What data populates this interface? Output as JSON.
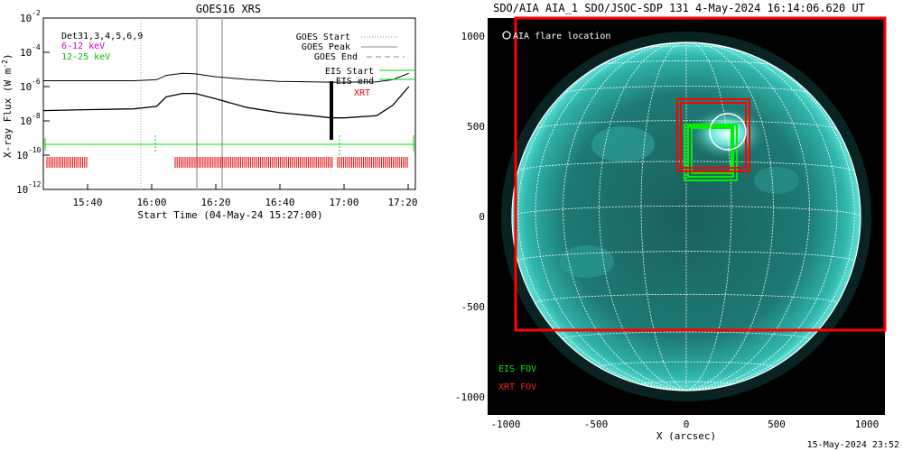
{
  "left": {
    "title": "GOES16 XRS",
    "ylabel": "X-ray Flux (W m",
    "ylabel_sup": "-2",
    "ylabel_end": ")",
    "xlabel": "Start Time (04-May-24 15:27:00)",
    "det_label": "Det31,3,4,5,6,9",
    "band_low": "6-12 keV",
    "band_high": "12-25 keV",
    "y_ticks": [
      {
        "exp": "-2",
        "label": "10"
      },
      {
        "exp": "-4",
        "label": "10"
      },
      {
        "exp": "-6",
        "label": "10"
      },
      {
        "exp": "-8",
        "label": "10"
      },
      {
        "exp": "-10",
        "label": "10"
      },
      {
        "exp": "-12",
        "label": "10"
      }
    ],
    "x_ticks": [
      "15:40",
      "16:00",
      "16:20",
      "16:40",
      "17:00",
      "17:20"
    ],
    "legend": {
      "goes_start": "GOES Start",
      "goes_peak": "GOES Peak",
      "goes_end": "GOES End",
      "eis_start": "EIS Start",
      "eis_end": "EIS end",
      "xrt": "XRT"
    },
    "colors": {
      "eis": "#00dd00",
      "xrt": "#e00000",
      "low": "#cc00cc",
      "high": "#00cc00"
    }
  },
  "right": {
    "title": "SDO/AIA AIA_1 SDO/JSOC-SDP 131  4-May-2024 16:14:06.620 UT",
    "flare_label": "AIA flare location",
    "eis_fov": "EIS FOV",
    "xrt_fov": "XRT FOV",
    "xlabel": "X (arcsec)",
    "x_ticks": [
      "-1000",
      "-500",
      "0",
      "500",
      "1000"
    ],
    "y_ticks": [
      "1000",
      "500",
      "0",
      "-500",
      "-1000"
    ],
    "colors": {
      "disk": "#22a8a0",
      "eis": "#00ee00",
      "xrt": "#ff0000"
    }
  },
  "footer": "15-May-2024 23:52",
  "chart_data": [
    {
      "type": "line",
      "title": "GOES16 XRS",
      "xlabel": "Start Time (04-May-24 15:27:00)",
      "ylabel": "X-ray Flux (W m-2)",
      "y_scale": "log",
      "ylim": [
        1e-12,
        0.01
      ],
      "x_range": [
        "15:27",
        "17:22"
      ],
      "series": [
        {
          "name": "6-12 keV",
          "x": [
            "15:27",
            "15:40",
            "15:55",
            "16:02",
            "16:05",
            "16:10",
            "16:14",
            "16:20",
            "16:30",
            "16:40",
            "16:50",
            "16:56",
            "17:00",
            "17:10",
            "17:15",
            "17:20"
          ],
          "values": [
            2.2e-06,
            2.2e-06,
            2.2e-06,
            2.5e-06,
            4.5e-06,
            6e-06,
            5.5e-06,
            3.8e-06,
            2.6e-06,
            2e-06,
            1.9e-06,
            1.8e-06,
            1.8e-06,
            1.9e-06,
            2.5e-06,
            6e-06
          ]
        },
        {
          "name": "12-25 keV",
          "x": [
            "15:27",
            "15:40",
            "15:55",
            "16:02",
            "16:05",
            "16:10",
            "16:14",
            "16:20",
            "16:30",
            "16:40",
            "16:50",
            "16:56",
            "17:00",
            "17:10",
            "17:15",
            "17:20"
          ],
          "values": [
            4e-08,
            4.5e-08,
            5e-08,
            7e-08,
            2.5e-07,
            4e-07,
            4e-07,
            2e-07,
            6e-08,
            3e-08,
            2e-08,
            1.5e-08,
            1.5e-08,
            2e-08,
            8e-08,
            1e-06
          ]
        }
      ]
    },
    {
      "type": "scatter",
      "title": "SDO/AIA AIA_1 SDO/JSOC-SDP 131  4-May-2024 16:14:06.620 UT",
      "xlabel": "X (arcsec)",
      "xlim": [
        -1100,
        1100
      ],
      "ylim": [
        -1100,
        1100
      ],
      "flare_location": {
        "x": 230,
        "y": 470
      }
    }
  ]
}
